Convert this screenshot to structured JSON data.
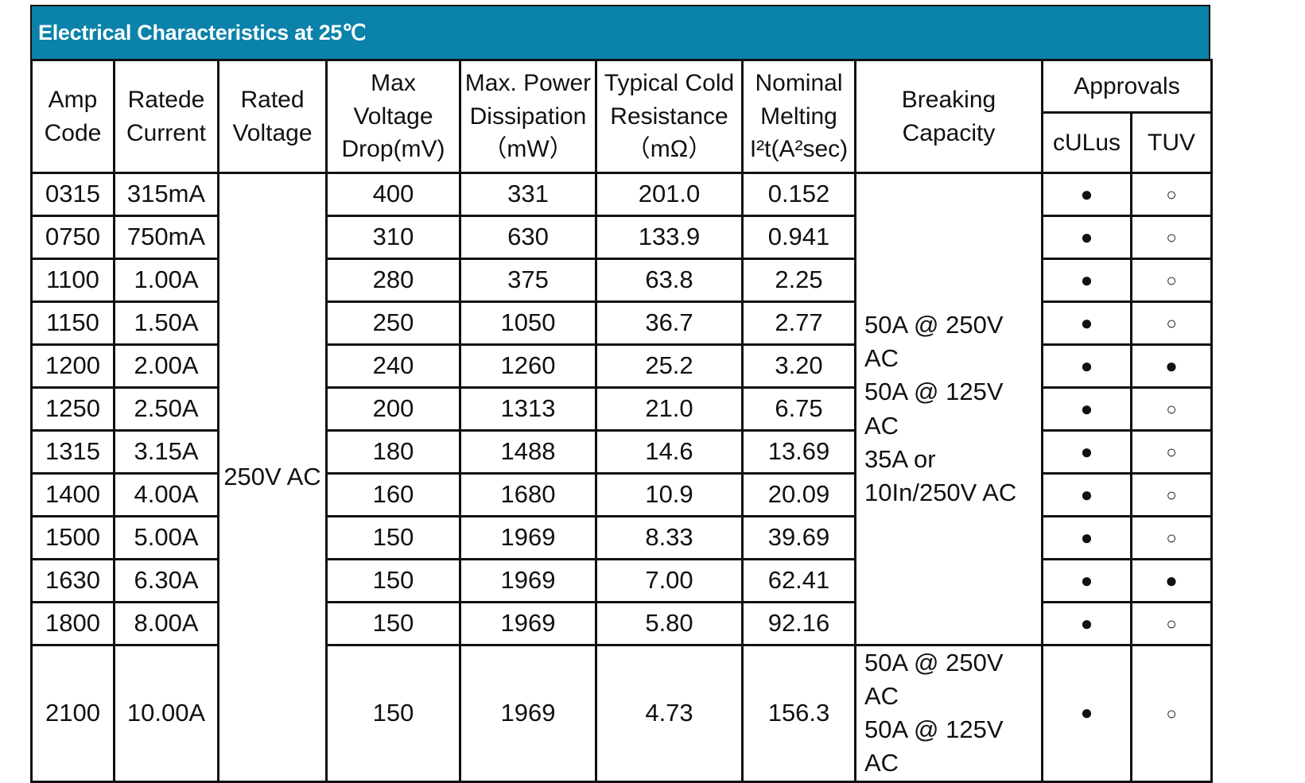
{
  "title": "Electrical Characteristics at 25℃",
  "headers": {
    "amp_code": "Amp Code",
    "rated_current": "Ratede Current",
    "rated_voltage": "Rated Voltage",
    "voltage_drop": "Max Voltage Drop(mV)",
    "power_dissipation_l1": "Max. Power Dissipation",
    "power_dissipation_l2": "（mW）",
    "cold_resistance_l1": "Typical Cold Resistance",
    "cold_resistance_l2": "（mΩ）",
    "melting_l1": "Nominal Melting",
    "melting_l2": "I²t(A²sec)",
    "breaking_capacity": "Breaking Capacity",
    "approvals": "Approvals",
    "culus": "cULus",
    "tuv": "TUV"
  },
  "rated_voltage_value": "250V AC",
  "breaking_capacity_main": [
    "50A @ 250V AC",
    "50A @ 125V AC",
    "35A or 10In/250V AC"
  ],
  "breaking_capacity_last": [
    "50A @ 250V AC",
    "50A @ 125V AC"
  ],
  "symbols": {
    "approved": "●",
    "not_approved": "○"
  },
  "rows": [
    {
      "amp_code": "0315",
      "current": "315mA",
      "voltage_drop": "400",
      "power": "331",
      "resistance": "201.0",
      "melting": "0.152",
      "culus": "●",
      "tuv": "○"
    },
    {
      "amp_code": "0750",
      "current": "750mA",
      "voltage_drop": "310",
      "power": "630",
      "resistance": "133.9",
      "melting": "0.941",
      "culus": "●",
      "tuv": "○"
    },
    {
      "amp_code": "1100",
      "current": "1.00A",
      "voltage_drop": "280",
      "power": "375",
      "resistance": "63.8",
      "melting": "2.25",
      "culus": "●",
      "tuv": "○"
    },
    {
      "amp_code": "1150",
      "current": "1.50A",
      "voltage_drop": "250",
      "power": "1050",
      "resistance": "36.7",
      "melting": "2.77",
      "culus": "●",
      "tuv": "○"
    },
    {
      "amp_code": "1200",
      "current": "2.00A",
      "voltage_drop": "240",
      "power": "1260",
      "resistance": "25.2",
      "melting": "3.20",
      "culus": "●",
      "tuv": "●"
    },
    {
      "amp_code": "1250",
      "current": "2.50A",
      "voltage_drop": "200",
      "power": "1313",
      "resistance": "21.0",
      "melting": "6.75",
      "culus": "●",
      "tuv": "○"
    },
    {
      "amp_code": "1315",
      "current": "3.15A",
      "voltage_drop": "180",
      "power": "1488",
      "resistance": "14.6",
      "melting": "13.69",
      "culus": "●",
      "tuv": "○"
    },
    {
      "amp_code": "1400",
      "current": "4.00A",
      "voltage_drop": "160",
      "power": "1680",
      "resistance": "10.9",
      "melting": "20.09",
      "culus": "●",
      "tuv": "○"
    },
    {
      "amp_code": "1500",
      "current": "5.00A",
      "voltage_drop": "150",
      "power": "1969",
      "resistance": "8.33",
      "melting": "39.69",
      "culus": "●",
      "tuv": "○"
    },
    {
      "amp_code": "1630",
      "current": "6.30A",
      "voltage_drop": "150",
      "power": "1969",
      "resistance": "7.00",
      "melting": "62.41",
      "culus": "●",
      "tuv": "●"
    },
    {
      "amp_code": "1800",
      "current": "8.00A",
      "voltage_drop": "150",
      "power": "1969",
      "resistance": "5.80",
      "melting": "92.16",
      "culus": "●",
      "tuv": "○"
    },
    {
      "amp_code": "2100",
      "current": "10.00A",
      "voltage_drop": "150",
      "power": "1969",
      "resistance": "4.73",
      "melting": "156.3",
      "culus": "●",
      "tuv": "○"
    }
  ]
}
